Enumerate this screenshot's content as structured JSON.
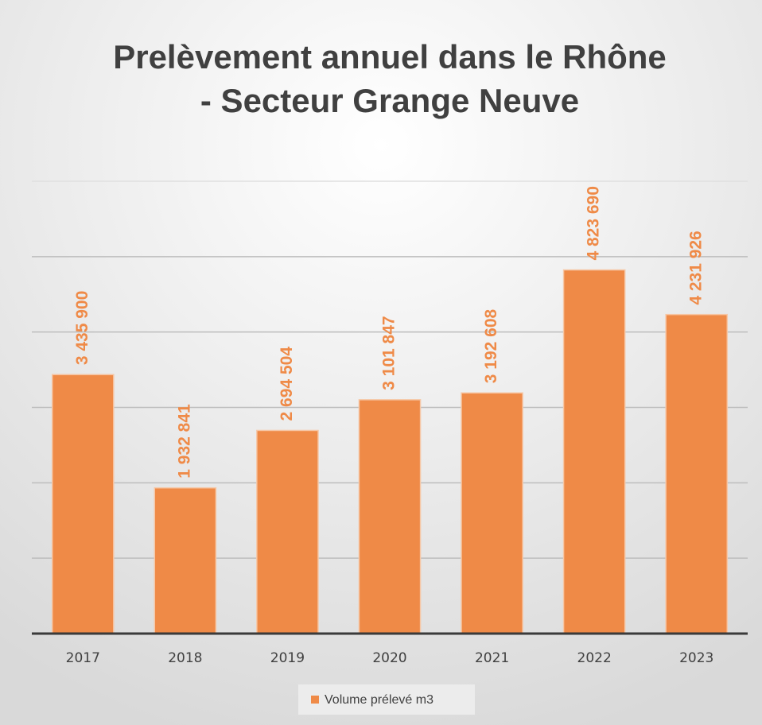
{
  "chart_data": {
    "type": "bar",
    "title": [
      "Prelèvement annuel dans le Rhône",
      "- Secteur Grange Neuve"
    ],
    "categories": [
      "2017",
      "2018",
      "2019",
      "2020",
      "2021",
      "2022",
      "2023"
    ],
    "series": [
      {
        "name": "Volume prélevé m3",
        "color": "#ef8a47",
        "values": [
          3435900,
          1932841,
          2694504,
          3101847,
          3192608,
          4823690,
          4231926
        ],
        "value_labels": [
          "3 435 900",
          "1 932 841",
          "2 694 504",
          "3 101 847",
          "3 192 608",
          "4 823 690",
          "4 231 926"
        ]
      }
    ],
    "ylim": [
      0,
      6000000
    ],
    "yticks": [
      0,
      1000000,
      2000000,
      3000000,
      4000000,
      5000000,
      6000000
    ],
    "grid": true,
    "legend": "bottom"
  }
}
